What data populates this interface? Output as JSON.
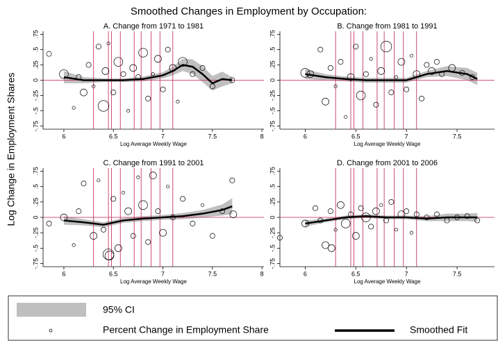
{
  "title": "Smoothed Changes in Employment by Occupation:",
  "y_label": "Log Change in Employment Shares",
  "legend": {
    "ci": "95% CI",
    "points": "Percent Change in Employment Share",
    "fit": "Smoothed Fit"
  },
  "chart_data": [
    {
      "type": "scatter",
      "title": "A. Change from 1971 to 1981",
      "x_label": "Log Average Weekly Wage",
      "xlim": [
        5.79,
        8.02
      ],
      "xticks": [
        6,
        6.5,
        7,
        7.5,
        8
      ],
      "ylim": [
        -0.8,
        0.8
      ],
      "yticks": [
        {
          "value": -0.75,
          "label": "-.75"
        },
        {
          "value": -0.5,
          "label": "-.5"
        },
        {
          "value": -0.25,
          "label": "-.25"
        },
        0,
        {
          "value": 0.25,
          "label": ".25"
        },
        {
          "value": 0.5,
          "label": ".5"
        },
        {
          "value": 0.75,
          "label": ".75"
        }
      ],
      "line_color": "#c0204a",
      "point_color": "#000000",
      "ci_color": "#bfbfbf",
      "vlines": [
        6.3,
        6.45,
        6.48,
        6.57,
        6.71,
        6.78,
        6.88,
        6.97,
        7.1
      ],
      "hline": 0,
      "points": {
        "x": [
          5.85,
          6.0,
          6.1,
          6.15,
          6.2,
          6.25,
          6.3,
          6.35,
          6.4,
          6.42,
          6.45,
          6.5,
          6.55,
          6.6,
          6.65,
          6.7,
          6.75,
          6.8,
          6.85,
          6.9,
          6.95,
          7.0,
          7.05,
          7.1,
          7.15,
          7.2,
          7.3,
          7.4,
          7.5,
          7.7
        ],
        "y": [
          0.43,
          0.1,
          -0.45,
          0.05,
          -0.2,
          0.25,
          -0.1,
          0.55,
          -0.42,
          0.15,
          0.6,
          -0.2,
          0.3,
          0.1,
          -0.5,
          0.2,
          0.05,
          0.45,
          -0.3,
          0.1,
          0.35,
          -0.15,
          0.5,
          0.2,
          -0.35,
          0.3,
          0.1,
          0.2,
          -0.1,
          0.0
        ],
        "size": [
          2,
          4,
          1,
          2,
          3,
          2,
          1,
          2,
          5,
          3,
          1,
          2,
          4,
          2,
          1,
          3,
          2,
          4,
          2,
          1,
          3,
          2,
          2,
          3,
          1,
          4,
          2,
          2,
          2,
          2
        ]
      },
      "fit": {
        "x": [
          6.0,
          6.2,
          6.4,
          6.6,
          6.8,
          7.0,
          7.1,
          7.2,
          7.3,
          7.4,
          7.5,
          7.6,
          7.7
        ],
        "y": [
          0.05,
          0.0,
          0.0,
          0.0,
          0.02,
          0.08,
          0.15,
          0.25,
          0.22,
          0.1,
          -0.05,
          0.02,
          0.0
        ],
        "ci_lower": [
          -0.05,
          -0.05,
          -0.03,
          -0.03,
          -0.02,
          0.03,
          0.08,
          0.15,
          0.1,
          -0.03,
          -0.17,
          -0.1,
          -0.05
        ],
        "ci_upper": [
          0.15,
          0.05,
          0.03,
          0.03,
          0.06,
          0.13,
          0.22,
          0.35,
          0.34,
          0.23,
          0.07,
          0.14,
          0.05
        ]
      }
    },
    {
      "type": "scatter",
      "title": "B. Change from 1981 to 1991",
      "x_label": "Log Average Weekly Wage",
      "xlim": [
        5.75,
        7.87
      ],
      "xticks": [
        6,
        6.5,
        7,
        7.5
      ],
      "ylim": [
        -0.8,
        0.8
      ],
      "yticks": [
        {
          "value": -0.75,
          "label": "-.75"
        },
        {
          "value": -0.5,
          "label": "-.5"
        },
        {
          "value": -0.25,
          "label": "-.25"
        },
        0,
        {
          "value": 0.25,
          "label": ".25"
        },
        {
          "value": 0.5,
          "label": ".5"
        },
        {
          "value": 0.75,
          "label": ".75"
        }
      ],
      "line_color": "#c0204a",
      "point_color": "#000000",
      "ci_color": "#bfbfbf",
      "vlines": [
        6.3,
        6.45,
        6.48,
        6.57,
        6.71,
        6.78,
        6.88,
        6.97,
        7.1
      ],
      "hline": 0,
      "points": {
        "x": [
          6.0,
          6.05,
          6.15,
          6.2,
          6.25,
          6.3,
          6.35,
          6.4,
          6.45,
          6.5,
          6.55,
          6.6,
          6.65,
          6.7,
          6.75,
          6.8,
          6.85,
          6.9,
          6.95,
          7.0,
          7.05,
          7.1,
          7.15,
          7.2,
          7.25,
          7.3,
          7.35,
          7.45,
          7.55,
          7.65
        ],
        "y": [
          0.12,
          0.1,
          0.5,
          -0.35,
          0.2,
          -0.1,
          0.3,
          -0.6,
          0.05,
          0.55,
          -0.25,
          0.1,
          0.35,
          -0.4,
          0.15,
          0.55,
          -0.2,
          0.05,
          0.3,
          -0.15,
          0.4,
          0.1,
          -0.3,
          0.25,
          0.15,
          0.3,
          0.1,
          0.2,
          0.12,
          0.05
        ],
        "size": [
          4,
          3,
          2,
          3,
          2,
          1,
          2,
          1,
          3,
          2,
          4,
          2,
          1,
          2,
          3,
          5,
          2,
          1,
          3,
          2,
          1,
          3,
          2,
          2,
          3,
          2,
          2,
          3,
          2,
          2
        ]
      },
      "fit": {
        "x": [
          6.0,
          6.2,
          6.4,
          6.6,
          6.8,
          7.0,
          7.2,
          7.4,
          7.6,
          7.7
        ],
        "y": [
          0.1,
          0.05,
          0.02,
          0.0,
          0.0,
          0.0,
          0.1,
          0.15,
          0.1,
          0.02
        ],
        "ci_lower": [
          0.02,
          0.0,
          -0.02,
          -0.04,
          -0.04,
          -0.04,
          0.05,
          0.07,
          0.0,
          -0.08
        ],
        "ci_upper": [
          0.18,
          0.1,
          0.06,
          0.04,
          0.04,
          0.04,
          0.15,
          0.23,
          0.2,
          0.12
        ]
      }
    },
    {
      "type": "scatter",
      "title": "C. Change from 1991 to 2001",
      "x_label": "Log Average Weekly Wage",
      "xlim": [
        5.79,
        8.02
      ],
      "xticks": [
        6,
        6.5,
        7,
        7.5,
        8
      ],
      "ylim": [
        -0.8,
        0.8
      ],
      "yticks": [
        {
          "value": -0.75,
          "label": "-.75"
        },
        {
          "value": -0.5,
          "label": "-.5"
        },
        {
          "value": -0.25,
          "label": "-.25"
        },
        0,
        {
          "value": 0.25,
          "label": ".25"
        },
        {
          "value": 0.5,
          "label": ".5"
        },
        {
          "value": 0.75,
          "label": ".75"
        }
      ],
      "line_color": "#c0204a",
      "point_color": "#000000",
      "ci_color": "#bfbfbf",
      "vlines": [
        6.3,
        6.45,
        6.48,
        6.57,
        6.71,
        6.78,
        6.88,
        6.97,
        7.1
      ],
      "hline": 0,
      "points": {
        "x": [
          5.85,
          6.0,
          6.1,
          6.15,
          6.2,
          6.3,
          6.35,
          6.4,
          6.45,
          6.46,
          6.5,
          6.55,
          6.6,
          6.65,
          6.7,
          6.75,
          6.8,
          6.85,
          6.9,
          6.95,
          7.0,
          7.05,
          7.1,
          7.2,
          7.3,
          7.4,
          7.5,
          7.6,
          7.7,
          7.71
        ],
        "y": [
          -0.1,
          0.0,
          -0.45,
          0.1,
          0.55,
          -0.3,
          0.6,
          -0.2,
          -0.6,
          -0.62,
          0.3,
          -0.5,
          0.4,
          0.1,
          -0.3,
          0.65,
          0.2,
          -0.4,
          0.68,
          0.1,
          -0.25,
          0.5,
          0.0,
          0.3,
          -0.1,
          0.2,
          -0.3,
          0.1,
          0.6,
          0.05
        ],
        "size": [
          2,
          3,
          1,
          2,
          2,
          3,
          1,
          2,
          5,
          4,
          2,
          3,
          1,
          3,
          2,
          1,
          4,
          2,
          3,
          2,
          3,
          1,
          2,
          2,
          2,
          1,
          2,
          2,
          2,
          3
        ]
      },
      "fit": {
        "x": [
          6.0,
          6.2,
          6.4,
          6.6,
          6.8,
          7.0,
          7.2,
          7.4,
          7.6,
          7.7
        ],
        "y": [
          -0.05,
          -0.08,
          -0.12,
          -0.05,
          -0.02,
          0.0,
          0.02,
          0.06,
          0.12,
          0.18
        ],
        "ci_lower": [
          -0.12,
          -0.13,
          -0.16,
          -0.09,
          -0.06,
          -0.04,
          -0.03,
          0.0,
          0.03,
          0.05
        ],
        "ci_upper": [
          0.02,
          -0.03,
          -0.08,
          -0.01,
          0.02,
          0.04,
          0.07,
          0.12,
          0.21,
          0.31
        ]
      }
    },
    {
      "type": "scatter",
      "title": "D. Change from 2001 to 2006",
      "x_label": "Log Average Weekly Wage",
      "xlim": [
        5.75,
        7.87
      ],
      "xticks": [
        6,
        6.5,
        7,
        7.5
      ],
      "ylim": [
        -0.8,
        0.8
      ],
      "yticks": [
        {
          "value": -0.75,
          "label": "-.75"
        },
        {
          "value": -0.5,
          "label": "-.5"
        },
        {
          "value": -0.25,
          "label": "-.25"
        },
        0,
        {
          "value": 0.25,
          "label": ".25"
        },
        {
          "value": 0.5,
          "label": ".5"
        },
        {
          "value": 0.75,
          "label": ".75"
        }
      ],
      "line_color": "#c0204a",
      "point_color": "#000000",
      "ci_color": "#bfbfbf",
      "vlines": [
        6.3,
        6.45,
        6.48,
        6.57,
        6.71,
        6.78,
        6.88,
        6.97,
        7.1
      ],
      "hline": 0,
      "points": {
        "x": [
          5.75,
          6.0,
          6.1,
          6.15,
          6.2,
          6.25,
          6.3,
          6.35,
          6.4,
          6.45,
          6.5,
          6.55,
          6.6,
          6.65,
          6.7,
          6.75,
          6.8,
          6.85,
          6.9,
          6.95,
          7.0,
          7.05,
          7.1,
          7.2,
          7.3,
          7.4,
          7.5,
          7.6,
          7.7,
          6.26
        ],
        "y": [
          -0.33,
          -0.1,
          0.15,
          -0.05,
          -0.45,
          0.1,
          -0.2,
          0.2,
          -0.1,
          0.05,
          -0.3,
          0.15,
          0.0,
          -0.15,
          0.1,
          0.2,
          -0.05,
          0.25,
          -0.2,
          0.05,
          0.1,
          -0.25,
          0.05,
          0.0,
          0.05,
          -0.05,
          0.0,
          0.02,
          -0.05,
          -0.5
        ],
        "size": [
          2,
          3,
          2,
          2,
          3,
          2,
          1,
          3,
          4,
          2,
          3,
          2,
          4,
          2,
          3,
          1,
          2,
          2,
          1,
          3,
          2,
          1,
          2,
          2,
          2,
          2,
          2,
          2,
          2,
          3
        ]
      },
      "fit": {
        "x": [
          6.0,
          6.2,
          6.4,
          6.6,
          6.8,
          7.0,
          7.2,
          7.4,
          7.6,
          7.7
        ],
        "y": [
          -0.1,
          -0.05,
          0.0,
          0.02,
          0.0,
          0.0,
          -0.02,
          0.0,
          0.0,
          0.0
        ],
        "ci_lower": [
          -0.15,
          -0.08,
          -0.03,
          -0.01,
          -0.03,
          -0.03,
          -0.06,
          -0.06,
          -0.06,
          -0.07
        ],
        "ci_upper": [
          -0.05,
          -0.02,
          0.03,
          0.05,
          0.03,
          0.03,
          0.02,
          0.06,
          0.06,
          0.07
        ]
      }
    }
  ]
}
